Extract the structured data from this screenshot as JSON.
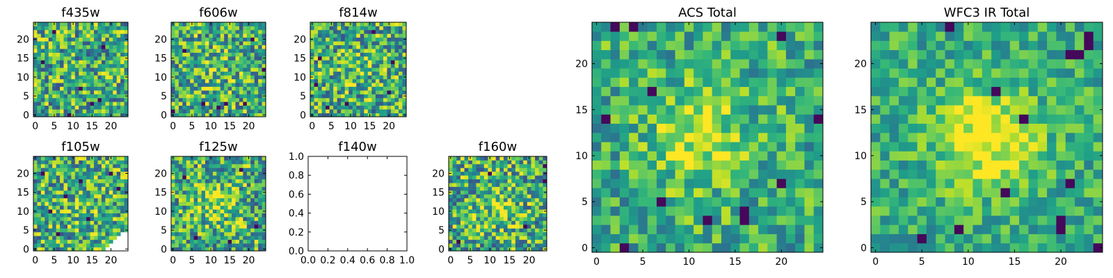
{
  "colormap": "viridis",
  "chart_data": [
    {
      "type": "heatmap",
      "title": "f435w",
      "grid": [
        25,
        25
      ],
      "xlim": [
        -0.5,
        24.5
      ],
      "ylim": [
        -0.5,
        24.5
      ],
      "xticks": [
        0,
        5,
        10,
        15,
        20
      ],
      "yticks": [
        0,
        5,
        10,
        15,
        20
      ],
      "seed": 11,
      "blob": 0.0,
      "blob_center": [
        12,
        10
      ],
      "noise": 1.0,
      "dark_pixels": [
        [
          5,
          22
        ],
        [
          9,
          0
        ],
        [
          15,
          3
        ],
        [
          18,
          18
        ],
        [
          2,
          14
        ],
        [
          12,
          7
        ],
        [
          17,
          4
        ]
      ],
      "missing_wedge": false,
      "empty": false
    },
    {
      "type": "heatmap",
      "title": "f606w",
      "grid": [
        25,
        25
      ],
      "xlim": [
        -0.5,
        24.5
      ],
      "ylim": [
        -0.5,
        24.5
      ],
      "xticks": [
        0,
        5,
        10,
        15,
        20
      ],
      "yticks": [
        0,
        5,
        10,
        15,
        20
      ],
      "seed": 23,
      "blob": 0.4,
      "blob_center": [
        10,
        12
      ],
      "noise": 1.0,
      "dark_pixels": [
        [
          8,
          3
        ],
        [
          14,
          3
        ],
        [
          19,
          3
        ],
        [
          0,
          1
        ],
        [
          24,
          12
        ],
        [
          3,
          17
        ],
        [
          12,
          2
        ],
        [
          21,
          20
        ]
      ],
      "missing_wedge": false,
      "empty": false
    },
    {
      "type": "heatmap",
      "title": "f814w",
      "grid": [
        25,
        25
      ],
      "xlim": [
        -0.5,
        24.5
      ],
      "ylim": [
        -0.5,
        24.5
      ],
      "xticks": [
        0,
        5,
        10,
        15,
        20
      ],
      "yticks": [
        0,
        5,
        10,
        15,
        20
      ],
      "seed": 37,
      "blob": 0.3,
      "blob_center": [
        12,
        12
      ],
      "noise": 1.0,
      "dark_pixels": [
        [
          20,
          6
        ],
        [
          2,
          15
        ],
        [
          4,
          2
        ],
        [
          16,
          22
        ],
        [
          9,
          3
        ],
        [
          21,
          14
        ],
        [
          1,
          8
        ]
      ],
      "missing_wedge": false,
      "empty": false
    },
    {
      "type": "heatmap",
      "title": "f105w",
      "grid": [
        25,
        25
      ],
      "xlim": [
        -0.5,
        24.5
      ],
      "ylim": [
        -0.5,
        24.5
      ],
      "xticks": [
        0,
        5,
        10,
        15,
        20
      ],
      "yticks": [
        0,
        5,
        10,
        15,
        20
      ],
      "seed": 41,
      "blob": 0.3,
      "blob_center": [
        14,
        12
      ],
      "noise": 1.0,
      "dark_pixels": [
        [
          4,
          10
        ],
        [
          8,
          14
        ],
        [
          12,
          18
        ],
        [
          20,
          20
        ],
        [
          6,
          4
        ],
        [
          14,
          8
        ],
        [
          22,
          16
        ],
        [
          2,
          20
        ]
      ],
      "missing_wedge": true,
      "empty": false
    },
    {
      "type": "heatmap",
      "title": "f125w",
      "grid": [
        25,
        25
      ],
      "xlim": [
        -0.5,
        24.5
      ],
      "ylim": [
        -0.5,
        24.5
      ],
      "xticks": [
        0,
        5,
        10,
        15,
        20
      ],
      "yticks": [
        0,
        5,
        10,
        15,
        20
      ],
      "seed": 53,
      "blob": 0.8,
      "blob_center": [
        12,
        12
      ],
      "noise": 1.0,
      "dark_pixels": [
        [
          22,
          6
        ],
        [
          3,
          19
        ],
        [
          18,
          21
        ],
        [
          6,
          3
        ],
        [
          15,
          2
        ]
      ],
      "missing_wedge": false,
      "empty": false
    },
    {
      "type": "heatmap",
      "title": "f140w",
      "grid": [
        0,
        0
      ],
      "xlim": [
        0.0,
        1.0
      ],
      "ylim": [
        0.0,
        1.0
      ],
      "xticks": [
        0.0,
        0.2,
        0.4,
        0.6,
        0.8,
        1.0
      ],
      "yticks": [
        0.0,
        0.2,
        0.4,
        0.6,
        0.8,
        1.0
      ],
      "tick_labels_x": [
        "0.0",
        "0.2",
        "0.4",
        "0.6",
        "0.8",
        "1.0"
      ],
      "tick_labels_y": [
        "0.0",
        "0.2",
        "0.4",
        "0.6",
        "0.8",
        "1.0"
      ],
      "empty": true
    },
    {
      "type": "heatmap",
      "title": "f160w",
      "grid": [
        25,
        25
      ],
      "xlim": [
        -0.5,
        24.5
      ],
      "ylim": [
        -0.5,
        24.5
      ],
      "xticks": [
        0,
        5,
        10,
        15,
        20
      ],
      "yticks": [
        0,
        5,
        10,
        15,
        20
      ],
      "seed": 67,
      "blob": 0.6,
      "blob_center": [
        12,
        11
      ],
      "noise": 1.0,
      "dark_pixels": [
        [
          24,
          22
        ],
        [
          24,
          18
        ],
        [
          2,
          2
        ],
        [
          19,
          6
        ],
        [
          10,
          20
        ]
      ],
      "missing_wedge": false,
      "empty": false
    },
    {
      "type": "heatmap",
      "title": "ACS Total",
      "grid": [
        25,
        25
      ],
      "xlim": [
        -0.5,
        24.5
      ],
      "ylim": [
        -0.5,
        24.5
      ],
      "xticks": [
        0,
        5,
        10,
        15,
        20
      ],
      "yticks": [
        0,
        5,
        10,
        15,
        20
      ],
      "seed": 79,
      "blob": 1.0,
      "blob_center": [
        11,
        12
      ],
      "noise": 0.7,
      "dark_pixels": [
        [
          16,
          3
        ],
        [
          16,
          4
        ],
        [
          7,
          5
        ],
        [
          2,
          24
        ],
        [
          4,
          24
        ],
        [
          20,
          23
        ],
        [
          1,
          14
        ],
        [
          6,
          17
        ],
        [
          24,
          14
        ],
        [
          20,
          7
        ],
        [
          12,
          3
        ],
        [
          3,
          0
        ]
      ],
      "missing_wedge": false,
      "empty": false
    },
    {
      "type": "heatmap",
      "title": "WFC3 IR Total",
      "grid": [
        25,
        25
      ],
      "xlim": [
        -0.5,
        24.5
      ],
      "ylim": [
        -0.5,
        24.5
      ],
      "xticks": [
        0,
        5,
        10,
        15,
        20
      ],
      "yticks": [
        0,
        5,
        10,
        15,
        20
      ],
      "seed": 97,
      "blob": 1.3,
      "blob_center": [
        12,
        12
      ],
      "noise": 0.55,
      "dark_pixels": [
        [
          20,
          3
        ],
        [
          20,
          2
        ],
        [
          21,
          21
        ],
        [
          22,
          21
        ],
        [
          23,
          23
        ],
        [
          23,
          22
        ],
        [
          16,
          14
        ],
        [
          21,
          7
        ],
        [
          14,
          6
        ],
        [
          9,
          2
        ],
        [
          5,
          1
        ],
        [
          24,
          0
        ],
        [
          8,
          24
        ],
        [
          13,
          17
        ]
      ],
      "missing_wedge": false,
      "empty": false
    }
  ]
}
